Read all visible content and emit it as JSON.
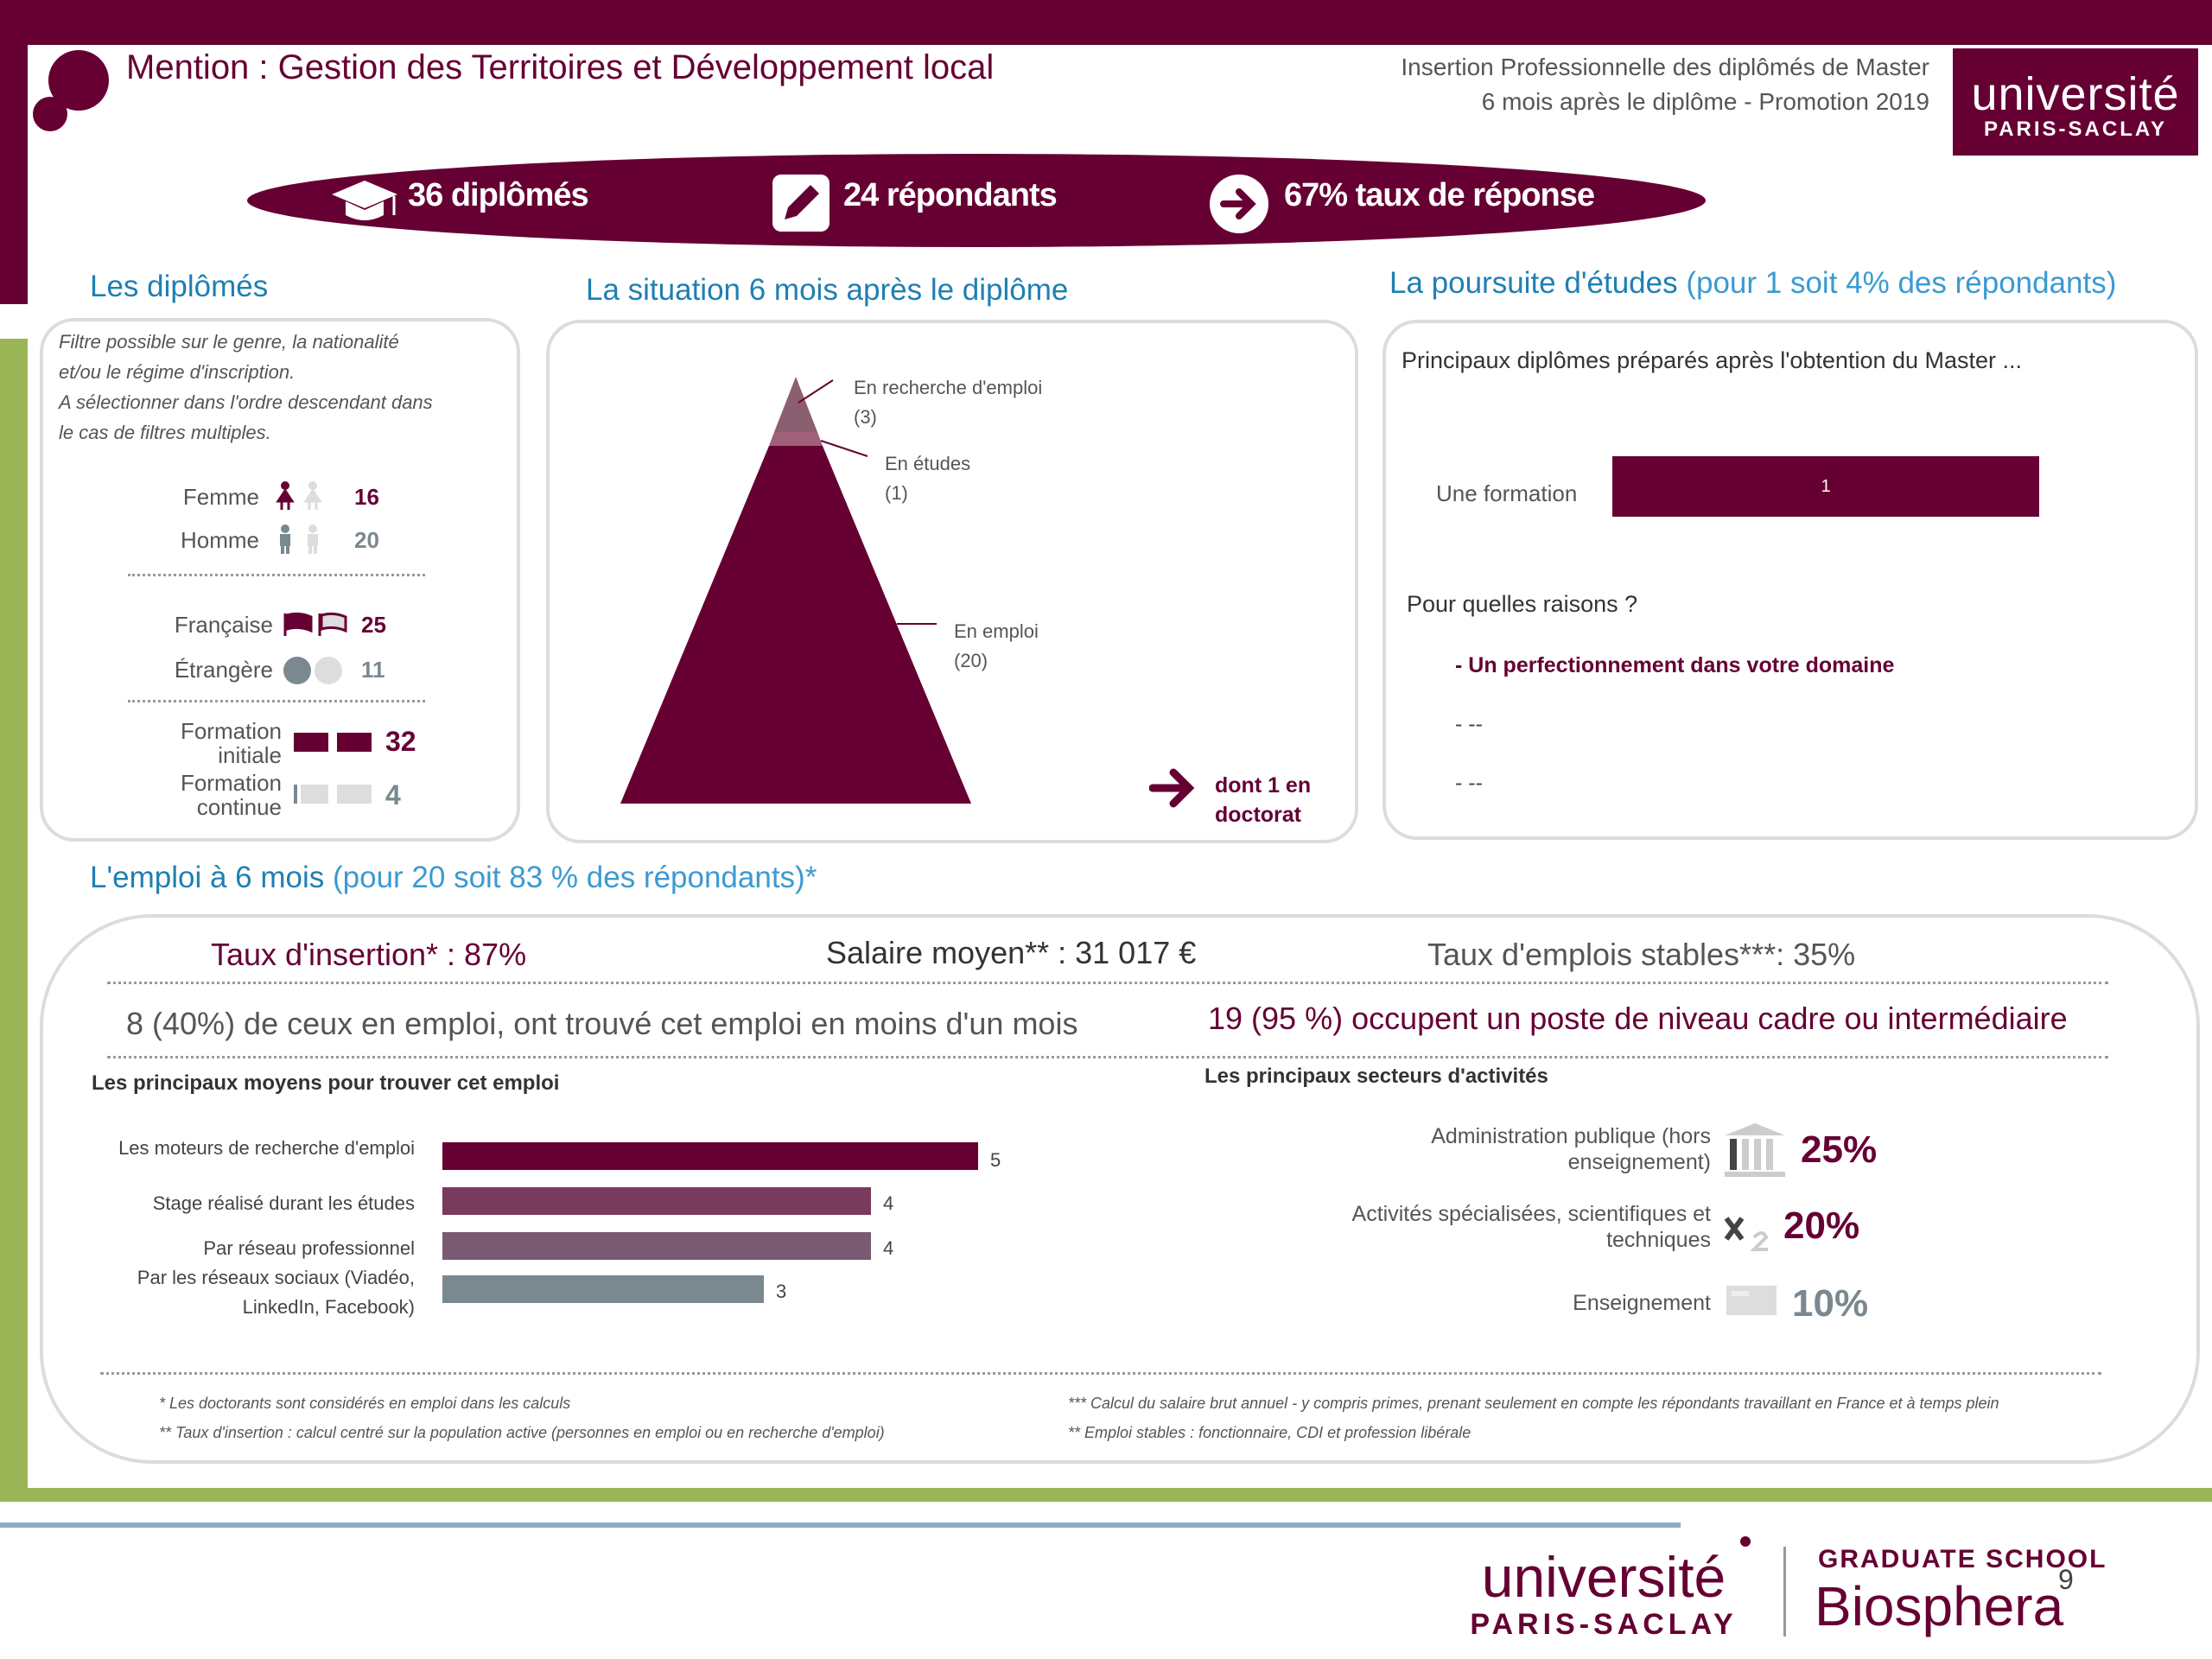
{
  "header": {
    "title": "Mention : Gestion des Territoires et Développement local",
    "line1": "Insertion Professionnelle des diplômés de Master",
    "line2": "6 mois après le diplôme - Promotion 2019",
    "logo_top": "université",
    "logo_bottom": "PARIS-SACLAY"
  },
  "stats": {
    "graduates": "36 diplômés",
    "respondents": "24 répondants",
    "response_rate": "67% taux de réponse"
  },
  "diplomes": {
    "title": "Les diplômés",
    "note_1": "Filtre possible sur le genre, la nationalité",
    "note_2": "et/ou le régime d'inscription.",
    "note_3": "A sélectionner dans l'ordre descendant dans",
    "note_4": "le cas de filtres multiples.",
    "rows": [
      {
        "label": "Femme",
        "value": "16"
      },
      {
        "label": "Homme",
        "value": "20"
      },
      {
        "label": "Française",
        "value": "25"
      },
      {
        "label": "Étrangère",
        "value": "11"
      },
      {
        "label1": "Formation",
        "label2": "initiale",
        "value": "32"
      },
      {
        "label1": "Formation",
        "label2": "continue",
        "value": "4"
      }
    ]
  },
  "situation": {
    "title": "La situation 6 mois après le diplôme",
    "recherche_label": "En recherche d'emploi",
    "recherche_value": "(3)",
    "etudes_label": "En études",
    "etudes_value": "(1)",
    "emploi_label": "En emploi",
    "emploi_value": "(20)",
    "doctorat_1": "dont 1 en",
    "doctorat_2": "doctorat",
    "colors": {
      "emploi": "#660033",
      "etudes": "#a0607a",
      "recherche": "#8a6070"
    }
  },
  "poursuite": {
    "title": "La poursuite d'études",
    "subtitle": "(pour 1 soit 4% des répondants)",
    "question": "Principaux diplômes préparés après l'obtention du Master ...",
    "bar_label": "Une formation",
    "bar_value": "1",
    "reasons_title": "Pour quelles raisons ?",
    "reason_1": "- Un perfectionnement dans votre domaine",
    "reason_2": "- --",
    "reason_3": "- --"
  },
  "emploi": {
    "title": "L'emploi à 6 mois",
    "subtitle": "(pour 20 soit 83 % des répondants)*",
    "taux_insertion": "Taux d'insertion* : 87%",
    "salaire": "Salaire moyen** : 31 017 €",
    "stables": "Taux d'emplois stables***: 35%",
    "moins_mois": "8 (40%) de ceux en emploi, ont trouvé cet emploi en moins d'un mois",
    "cadre": "19 (95 %) occupent un poste de niveau cadre ou intermédiaire",
    "moyens_title": "Les principaux moyens pour trouver cet emploi",
    "secteurs_title": "Les principaux secteurs d'activités",
    "secteurs": [
      {
        "label1": "Administration publique (hors",
        "label2": "enseignement)",
        "value": "25%"
      },
      {
        "label1": "Activités spécialisées, scientifiques et",
        "label2": "techniques",
        "value": "20%"
      },
      {
        "label1": "Enseignement",
        "label2": "",
        "value": "10%"
      }
    ]
  },
  "chart_data": {
    "type": "bar",
    "orientation": "horizontal",
    "categories": [
      "Les moteurs de recherche d'emploi",
      "Stage réalisé durant les études",
      "Par réseau professionnel",
      "Par les réseaux sociaux (Viadéo, LinkedIn, Facebook)"
    ],
    "values": [
      5,
      4,
      4,
      3
    ],
    "colors": [
      "#660033",
      "#7a3a5e",
      "#7a5a72",
      "#7a8890"
    ],
    "xlim": [
      0,
      5
    ]
  },
  "footnotes": {
    "f1": "* Les doctorants sont considérés en emploi dans les calculs",
    "f2": "** Taux d'insertion : calcul centré sur la population active (personnes en emploi ou en recherche d'emploi)",
    "f3": "*** Calcul du salaire brut annuel - y compris primes, prenant seulement en compte les répondants travaillant en France et à temps plein",
    "f4": "** Emploi stables : fonctionnaire, CDI et profession libérale"
  },
  "footer": {
    "ups_top": "université",
    "ups_bottom": "PARIS-SACLAY",
    "gs_top": "GRADUATE SCHOOL",
    "gs_bottom": "Biosphera",
    "page_number": "9"
  }
}
